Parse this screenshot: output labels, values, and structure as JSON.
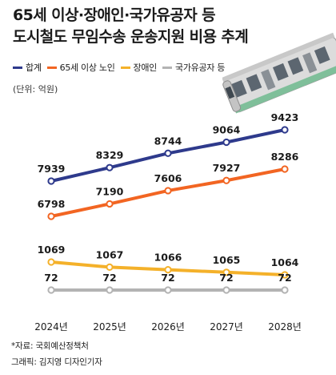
{
  "title_line1": "65세 이상·장애인·국가유공자 등",
  "title_line2": "도시철도 무임수송 운송지원 비용 추계",
  "unit": "(단위: 억원)",
  "source": "*자료: 국회예산정책처",
  "credit": "그래픽: 김지영 디자인기자",
  "chart_data": {
    "type": "line",
    "x": [
      "2024년",
      "2025년",
      "2026년",
      "2027년",
      "2028년"
    ],
    "series": [
      {
        "name": "합계",
        "color": "#2e3a8c",
        "values": [
          7939,
          8329,
          8744,
          9064,
          9423
        ]
      },
      {
        "name": "65세 이상 노인",
        "color": "#f26522",
        "values": [
          6798,
          7190,
          7606,
          7927,
          8286
        ]
      },
      {
        "name": "장애인",
        "color": "#f4b12a",
        "values": [
          1069,
          1067,
          1066,
          1065,
          1064
        ]
      },
      {
        "name": "국가유공자 등",
        "color": "#b3b3b3",
        "values": [
          72,
          72,
          72,
          72,
          72
        ]
      }
    ]
  }
}
